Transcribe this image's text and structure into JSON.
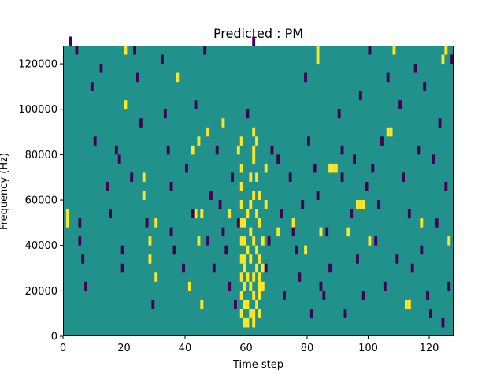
{
  "chart_data": {
    "type": "heatmap",
    "title": "Predicted : PM",
    "xlabel": "Time step",
    "ylabel": "Frequency (Hz)",
    "xlim": [
      0,
      128
    ],
    "ylim": [
      0,
      128000
    ],
    "x_ticks": [
      0,
      20,
      40,
      60,
      80,
      100,
      120
    ],
    "y_ticks": [
      0,
      20000,
      40000,
      60000,
      80000,
      100000,
      120000
    ],
    "grid": false,
    "colors": {
      "background": "#21918c",
      "high": "#fde725",
      "low": "#440154"
    },
    "cell_width": 1,
    "cell_height": 4000,
    "high_cells": [
      [
        1,
        52000
      ],
      [
        1,
        48000
      ],
      [
        20,
        124000
      ],
      [
        20,
        100000
      ],
      [
        26,
        68000
      ],
      [
        26,
        60000
      ],
      [
        28,
        40000
      ],
      [
        28,
        32000
      ],
      [
        30,
        24000
      ],
      [
        30,
        48000
      ],
      [
        37,
        112000
      ],
      [
        41,
        20000
      ],
      [
        42,
        80000
      ],
      [
        43,
        52000
      ],
      [
        44,
        84000
      ],
      [
        44,
        40000
      ],
      [
        45,
        52000
      ],
      [
        45,
        12000
      ],
      [
        47,
        88000
      ],
      [
        52,
        92000
      ],
      [
        54,
        52000
      ],
      [
        57,
        80000
      ],
      [
        58,
        84000
      ],
      [
        58,
        72000
      ],
      [
        58,
        64000
      ],
      [
        58,
        56000
      ],
      [
        58,
        48000
      ],
      [
        58,
        40000
      ],
      [
        58,
        32000
      ],
      [
        58,
        24000
      ],
      [
        58,
        16000
      ],
      [
        58,
        8000
      ],
      [
        59,
        48000
      ],
      [
        59,
        40000
      ],
      [
        59,
        32000
      ],
      [
        59,
        28000
      ],
      [
        59,
        20000
      ],
      [
        59,
        12000
      ],
      [
        59,
        4000
      ],
      [
        60,
        52000
      ],
      [
        60,
        36000
      ],
      [
        60,
        24000
      ],
      [
        60,
        12000
      ],
      [
        60,
        4000
      ],
      [
        61,
        68000
      ],
      [
        61,
        56000
      ],
      [
        61,
        44000
      ],
      [
        61,
        32000
      ],
      [
        61,
        20000
      ],
      [
        61,
        8000
      ],
      [
        62,
        88000
      ],
      [
        62,
        80000
      ],
      [
        62,
        76000
      ],
      [
        62,
        60000
      ],
      [
        62,
        40000
      ],
      [
        62,
        24000
      ],
      [
        62,
        16000
      ],
      [
        62,
        8000
      ],
      [
        62,
        4000
      ],
      [
        63,
        84000
      ],
      [
        63,
        68000
      ],
      [
        63,
        52000
      ],
      [
        63,
        36000
      ],
      [
        63,
        28000
      ],
      [
        63,
        12000
      ],
      [
        64,
        60000
      ],
      [
        64,
        48000
      ],
      [
        64,
        32000
      ],
      [
        64,
        24000
      ],
      [
        64,
        20000
      ],
      [
        64,
        16000
      ],
      [
        64,
        8000
      ],
      [
        65,
        40000
      ],
      [
        65,
        28000
      ],
      [
        65,
        20000
      ],
      [
        66,
        72000
      ],
      [
        66,
        56000
      ],
      [
        83,
        124000
      ],
      [
        83,
        120000
      ],
      [
        87,
        72000
      ],
      [
        88,
        72000
      ],
      [
        89,
        72000
      ],
      [
        96,
        56000
      ],
      [
        97,
        56000
      ],
      [
        98,
        56000
      ],
      [
        106,
        88000
      ],
      [
        107,
        88000
      ],
      [
        108,
        124000
      ],
      [
        112,
        12000
      ],
      [
        113,
        12000
      ],
      [
        124,
        120000
      ],
      [
        125,
        124000
      ],
      [
        126,
        40000
      ],
      [
        117,
        48000
      ],
      [
        100,
        40000
      ],
      [
        93,
        44000
      ],
      [
        84,
        44000
      ],
      [
        70,
        44000
      ],
      [
        75,
        48000
      ],
      [
        79,
        36000
      ]
    ],
    "low_cells": [
      [
        2,
        128000
      ],
      [
        4,
        124000
      ],
      [
        5,
        48000
      ],
      [
        5,
        40000
      ],
      [
        6,
        32000
      ],
      [
        7,
        20000
      ],
      [
        9,
        108000
      ],
      [
        10,
        84000
      ],
      [
        12,
        116000
      ],
      [
        14,
        64000
      ],
      [
        15,
        52000
      ],
      [
        17,
        80000
      ],
      [
        18,
        76000
      ],
      [
        19,
        28000
      ],
      [
        19,
        36000
      ],
      [
        22,
        68000
      ],
      [
        23,
        124000
      ],
      [
        24,
        112000
      ],
      [
        25,
        92000
      ],
      [
        27,
        48000
      ],
      [
        29,
        12000
      ],
      [
        32,
        120000
      ],
      [
        33,
        96000
      ],
      [
        34,
        80000
      ],
      [
        35,
        64000
      ],
      [
        35,
        44000
      ],
      [
        36,
        36000
      ],
      [
        39,
        28000
      ],
      [
        40,
        72000
      ],
      [
        42,
        52000
      ],
      [
        43,
        100000
      ],
      [
        46,
        124000
      ],
      [
        47,
        40000
      ],
      [
        48,
        60000
      ],
      [
        49,
        28000
      ],
      [
        50,
        80000
      ],
      [
        51,
        56000
      ],
      [
        52,
        44000
      ],
      [
        53,
        36000
      ],
      [
        54,
        20000
      ],
      [
        55,
        68000
      ],
      [
        56,
        12000
      ],
      [
        57,
        48000
      ],
      [
        60,
        96000
      ],
      [
        66,
        28000
      ],
      [
        67,
        40000
      ],
      [
        68,
        80000
      ],
      [
        70,
        76000
      ],
      [
        71,
        52000
      ],
      [
        72,
        16000
      ],
      [
        74,
        68000
      ],
      [
        75,
        44000
      ],
      [
        76,
        36000
      ],
      [
        77,
        24000
      ],
      [
        78,
        56000
      ],
      [
        79,
        112000
      ],
      [
        80,
        84000
      ],
      [
        81,
        8000
      ],
      [
        82,
        72000
      ],
      [
        83,
        60000
      ],
      [
        84,
        20000
      ],
      [
        85,
        16000
      ],
      [
        86,
        44000
      ],
      [
        87,
        28000
      ],
      [
        90,
        96000
      ],
      [
        91,
        68000
      ],
      [
        92,
        8000
      ],
      [
        94,
        52000
      ],
      [
        95,
        76000
      ],
      [
        96,
        32000
      ],
      [
        97,
        104000
      ],
      [
        98,
        16000
      ],
      [
        99,
        64000
      ],
      [
        100,
        124000
      ],
      [
        101,
        72000
      ],
      [
        102,
        40000
      ],
      [
        103,
        56000
      ],
      [
        104,
        84000
      ],
      [
        105,
        20000
      ],
      [
        106,
        112000
      ],
      [
        109,
        32000
      ],
      [
        110,
        100000
      ],
      [
        111,
        68000
      ],
      [
        113,
        52000
      ],
      [
        114,
        28000
      ],
      [
        115,
        116000
      ],
      [
        116,
        80000
      ],
      [
        117,
        36000
      ],
      [
        118,
        108000
      ],
      [
        119,
        16000
      ],
      [
        120,
        8000
      ],
      [
        121,
        76000
      ],
      [
        122,
        48000
      ],
      [
        123,
        92000
      ],
      [
        124,
        4000
      ],
      [
        125,
        64000
      ],
      [
        126,
        20000
      ],
      [
        127,
        120000
      ],
      [
        62,
        128000
      ],
      [
        91,
        80000
      ]
    ]
  }
}
